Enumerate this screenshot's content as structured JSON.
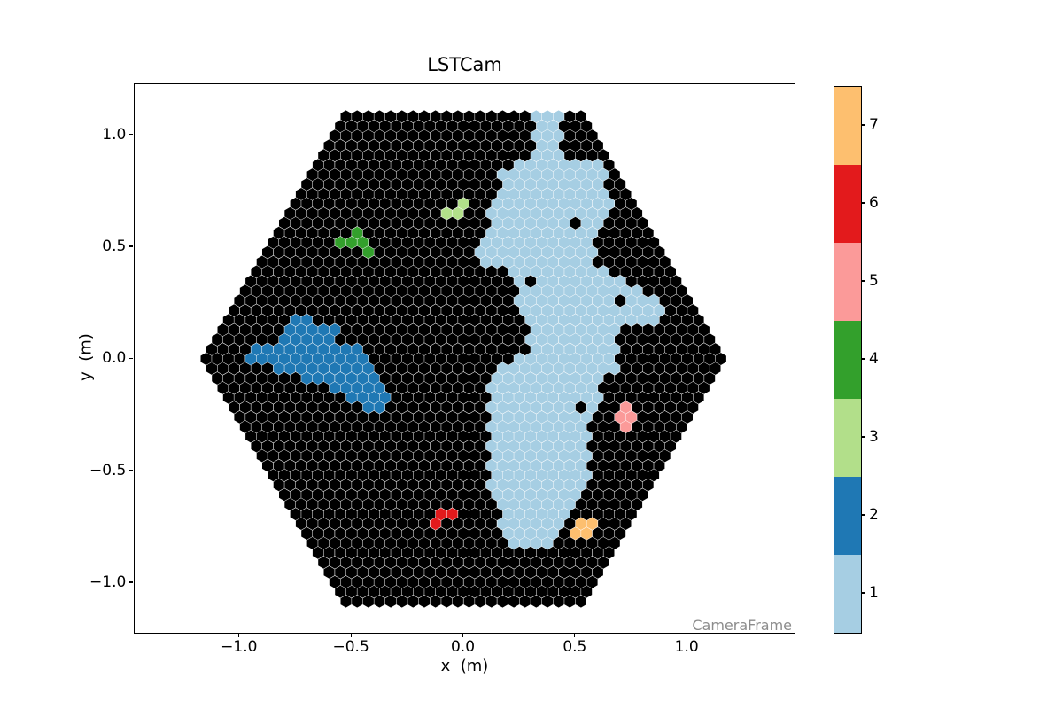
{
  "figure": {
    "background": "#ffffff"
  },
  "chart_data": {
    "type": "heatmap",
    "subtype": "hexagonal-camera-image",
    "title": "LSTCam",
    "xlabel": "x  (m)",
    "ylabel": "y  (m)",
    "frame_label": "CameraFrame",
    "frame_label_color": "#8c8c8c",
    "grid": false,
    "xlim": [
      -1.468,
      1.477
    ],
    "ylim": [
      -1.224,
      1.227
    ],
    "x_ticks": {
      "values": [
        -1.0,
        -0.5,
        0.0,
        0.5,
        1.0
      ],
      "labels": [
        "−1.0",
        "−0.5",
        "0.0",
        "0.5",
        "1.0"
      ]
    },
    "y_ticks": {
      "values": [
        1.0,
        0.5,
        0.0,
        -0.5,
        -1.0
      ],
      "labels": [
        "1.0",
        "0.5",
        "0.0",
        "−0.5",
        "−1.0"
      ]
    },
    "colorbar": {
      "position": "right",
      "tick_labels": [
        "1",
        "2",
        "3",
        "4",
        "5",
        "6",
        "7"
      ],
      "segments_bottom_to_top": [
        {
          "value": 1,
          "color": "#a6cee3"
        },
        {
          "value": 2,
          "color": "#1f78b4"
        },
        {
          "value": 3,
          "color": "#b2df8a"
        },
        {
          "value": 4,
          "color": "#33a02c"
        },
        {
          "value": 5,
          "color": "#fb9a99"
        },
        {
          "value": 6,
          "color": "#e31a1c"
        },
        {
          "value": 7,
          "color": "#fdbf6f"
        }
      ]
    },
    "camera_geometry": {
      "pixel_shape": "hexagon-pointy-top",
      "pixel_pitch_m": 0.05,
      "row_spacing_m": 0.04330127,
      "camera_half_height_m": 1.094,
      "camera_hex_cut_m": 1.018,
      "noise_color": "#000000",
      "gap_color": "#ffffff"
    },
    "clusters": [
      {
        "label": 1,
        "color": "#a6cee3",
        "shape": "polygon",
        "points": [
          [
            0.32,
            1.1
          ],
          [
            0.44,
            1.1
          ],
          [
            0.44,
            0.89
          ],
          [
            0.62,
            0.88
          ],
          [
            0.645,
            0.78
          ],
          [
            0.66,
            0.62
          ],
          [
            0.6,
            0.54
          ],
          [
            0.585,
            0.44
          ],
          [
            0.66,
            0.38
          ],
          [
            0.78,
            0.3
          ],
          [
            0.88,
            0.25
          ],
          [
            0.875,
            0.15
          ],
          [
            0.72,
            0.13
          ],
          [
            0.675,
            0.05
          ],
          [
            0.7,
            -0.02
          ],
          [
            0.62,
            -0.1
          ],
          [
            0.6,
            -0.22
          ],
          [
            0.555,
            -0.3
          ],
          [
            0.58,
            -0.45
          ],
          [
            0.55,
            -0.58
          ],
          [
            0.46,
            -0.7
          ],
          [
            0.42,
            -0.82
          ],
          [
            0.3,
            -0.865
          ],
          [
            0.19,
            -0.835
          ],
          [
            0.155,
            -0.7
          ],
          [
            0.125,
            -0.6
          ],
          [
            0.1,
            -0.3
          ],
          [
            0.13,
            -0.04
          ],
          [
            0.3,
            0.03
          ],
          [
            0.3,
            0.135
          ],
          [
            0.25,
            0.2
          ],
          [
            0.23,
            0.38
          ],
          [
            0.115,
            0.41
          ],
          [
            0.065,
            0.48
          ],
          [
            0.1,
            0.56
          ],
          [
            0.15,
            0.6
          ],
          [
            0.1,
            0.655
          ],
          [
            0.15,
            0.73
          ],
          [
            0.165,
            0.86
          ],
          [
            0.32,
            0.88
          ]
        ],
        "holes": [
          [
            0.503,
            0.609
          ],
          [
            0.321,
            0.344
          ],
          [
            0.696,
            0.265
          ],
          [
            0.523,
            -0.229
          ]
        ]
      },
      {
        "label": 2,
        "color": "#1f78b4",
        "shape": "polygon",
        "points": [
          [
            -0.99,
            0.02
          ],
          [
            -0.93,
            0.1
          ],
          [
            -0.865,
            0.065
          ],
          [
            -0.81,
            0.13
          ],
          [
            -0.74,
            0.19
          ],
          [
            -0.655,
            0.16
          ],
          [
            -0.565,
            0.13
          ],
          [
            -0.5,
            0.085
          ],
          [
            -0.445,
            0.05
          ],
          [
            -0.41,
            0.0
          ],
          [
            -0.425,
            -0.07
          ],
          [
            -0.36,
            -0.11
          ],
          [
            -0.32,
            -0.17
          ],
          [
            -0.355,
            -0.225
          ],
          [
            -0.44,
            -0.24
          ],
          [
            -0.5,
            -0.19
          ],
          [
            -0.575,
            -0.155
          ],
          [
            -0.65,
            -0.115
          ],
          [
            -0.72,
            -0.085
          ],
          [
            -0.8,
            -0.06
          ],
          [
            -0.88,
            -0.04
          ],
          [
            -0.955,
            -0.03
          ]
        ],
        "holes": [
          [
            -0.545,
            0.085
          ]
        ]
      },
      {
        "label": 3,
        "color": "#b2df8a",
        "shape": "pixels",
        "points": [
          [
            -0.079,
            0.628
          ],
          [
            -0.047,
            0.656
          ],
          [
            -0.013,
            0.684
          ]
        ]
      },
      {
        "label": 4,
        "color": "#33a02c",
        "shape": "pixels",
        "points": [
          [
            -0.462,
            0.576
          ],
          [
            -0.448,
            0.533
          ],
          [
            -0.542,
            0.507
          ],
          [
            -0.496,
            0.499
          ],
          [
            -0.448,
            0.474
          ]
        ]
      },
      {
        "label": 5,
        "color": "#fb9a99",
        "shape": "pixels",
        "points": [
          [
            0.745,
            -0.21
          ],
          [
            0.702,
            -0.248
          ],
          [
            0.748,
            -0.258
          ],
          [
            0.715,
            -0.292
          ]
        ]
      },
      {
        "label": 6,
        "color": "#e31a1c",
        "shape": "pixels",
        "points": [
          [
            -0.046,
            -0.668
          ],
          [
            -0.083,
            -0.696
          ],
          [
            -0.043,
            -0.712
          ],
          [
            -0.126,
            -0.735
          ]
        ]
      },
      {
        "label": 7,
        "color": "#fdbf6f",
        "shape": "pixels",
        "points": [
          [
            0.513,
            -0.728
          ],
          [
            0.56,
            -0.743
          ],
          [
            0.488,
            -0.764
          ],
          [
            0.534,
            -0.778
          ]
        ]
      }
    ]
  }
}
